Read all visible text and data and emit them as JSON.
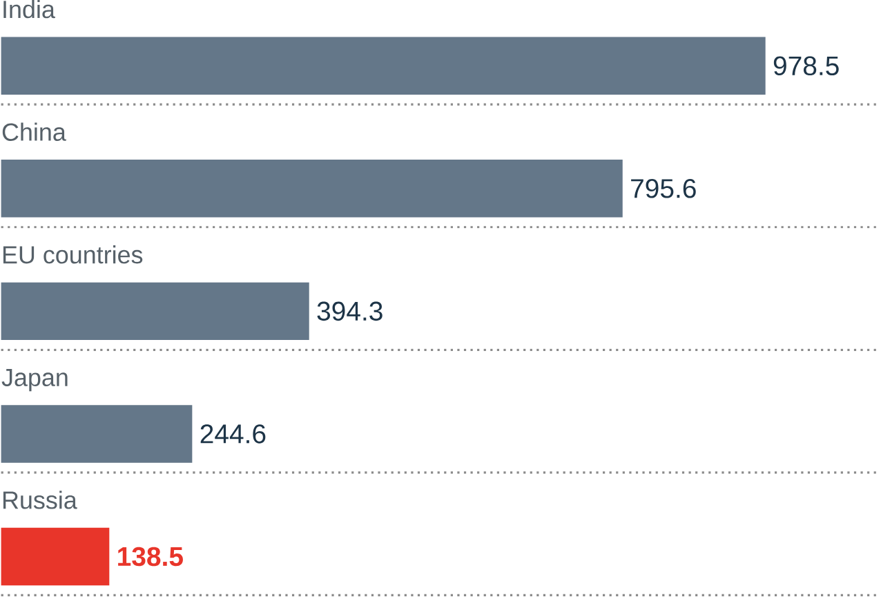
{
  "chart_data": {
    "type": "bar",
    "orientation": "horizontal",
    "categories": [
      "India",
      "China",
      "EU countries",
      "Japan",
      "Russia"
    ],
    "values": [
      978.5,
      795.6,
      394.3,
      244.6,
      138.5
    ],
    "colors": [
      "#647789",
      "#647789",
      "#647789",
      "#647789",
      "#e8352a"
    ],
    "xlim": [
      0,
      1125
    ],
    "data_labels": true,
    "grid": "y"
  }
}
